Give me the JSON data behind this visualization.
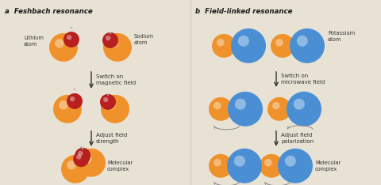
{
  "bg_color": "#e8e2d4",
  "orange": "#f0922b",
  "red_dark": "#b82020",
  "blue": "#4a8fd4",
  "text_color": "#1a1a1a",
  "label_color": "#333333",
  "panel_a_title": "a  Feshbach resonance",
  "panel_b_title": "b  Field-linked resonance",
  "step1_a": "Switch on\nmagnetic field",
  "step2_a": "Adjust field\nstrength",
  "step1_b": "Switch on\nmicrowave field",
  "step2_b": "Adjust field\npolarization",
  "lbl_lithium": "Lithium\natom",
  "lbl_sodium": "Sodium\natom",
  "lbl_potassium": "Potassium\natom",
  "lbl_mol_a": "Molecular\ncomplex",
  "lbl_mol_b": "Molecular\ncomplex"
}
